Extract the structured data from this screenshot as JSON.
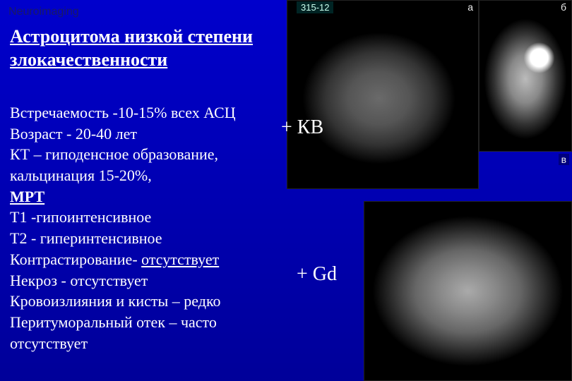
{
  "header_small": "Neuroimaging",
  "title": "Астроцитома низкой степени злокачественности",
  "lines": {
    "l1": "Встречаемость -10-15% всех АСЦ",
    "l2": "Возраст - 20-40 лет",
    "l3": "КТ – гиподенсное образование,",
    "l4": "кальцинация 15-20%,",
    "mrt": "МРТ",
    "l5": " Т1 -гипоинтенсивное",
    "l6": " Т2 - гиперинтенсивное",
    "l7a": "Контрастирование- ",
    "l7b": "отсутствует",
    "l8": "Некроз - отсутствует",
    "l9": "Кровоизлияния и кисты – редко",
    "l10": "Перитуморальный отек – часто",
    "l11": "отсутствует"
  },
  "overlay": {
    "kv": "+ КВ",
    "gd": "+ Gd"
  },
  "panel_labels": {
    "a": "а",
    "b": "б",
    "c": "в"
  },
  "idlabel": "315-12",
  "colors": {
    "bg_top": "#0000cc",
    "bg_bottom": "#000099",
    "text": "#ffffff"
  },
  "fonts": {
    "title_size_pt": 20,
    "body_size_pt": 17,
    "overlay_size_pt": 21
  }
}
